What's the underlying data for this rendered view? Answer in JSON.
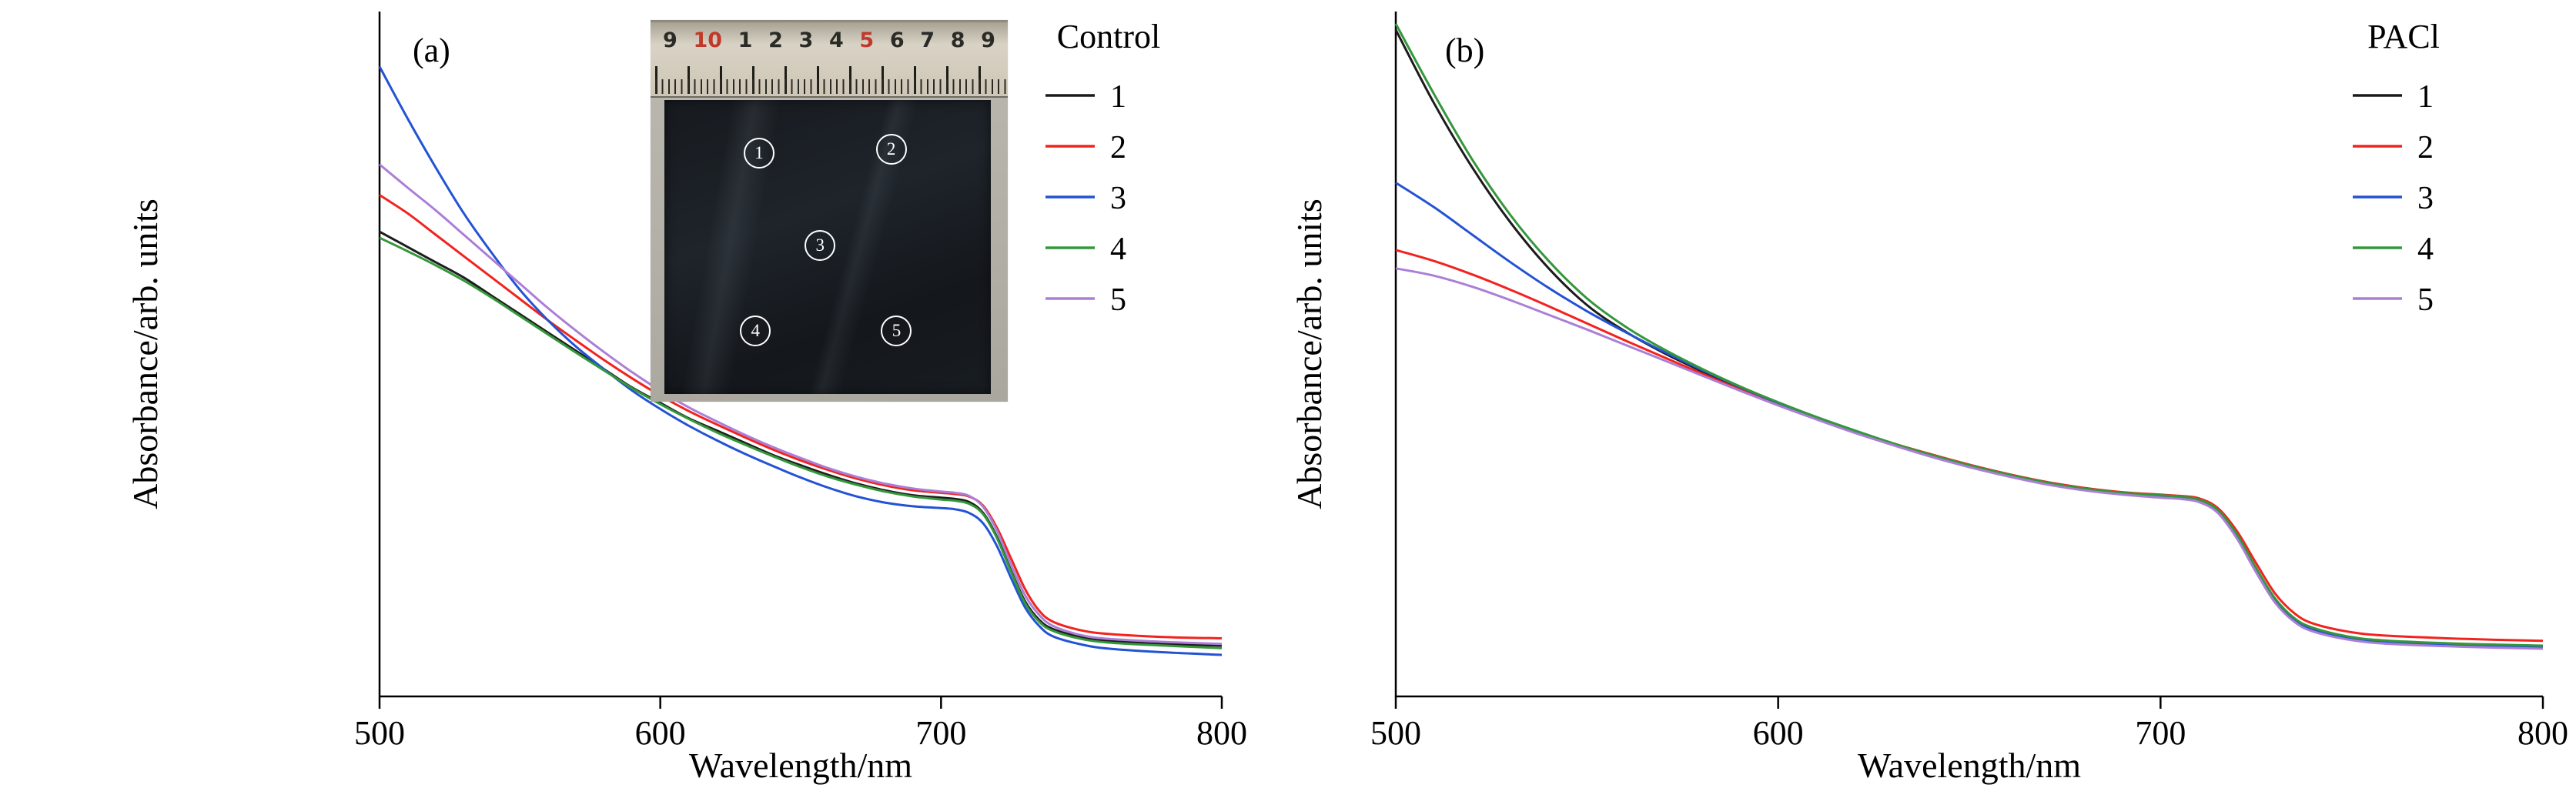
{
  "page": {
    "background": "#ffffff"
  },
  "chart_data": [
    {
      "type": "line",
      "panel_label": "(a)",
      "legend_title": "Control",
      "xlabel": "Wavelength/nm",
      "ylabel": "Absorbance/arb. units",
      "xlim": [
        500,
        800
      ],
      "ylim": [
        0,
        1.12
      ],
      "x_ticks": [
        500,
        600,
        700,
        800
      ],
      "grid": false,
      "legend_position": "top-right",
      "x": [
        500,
        510,
        520,
        530,
        540,
        550,
        560,
        570,
        580,
        590,
        600,
        610,
        620,
        630,
        640,
        650,
        660,
        670,
        680,
        690,
        700,
        705,
        710,
        715,
        720,
        725,
        730,
        735,
        740,
        750,
        760,
        780,
        800
      ],
      "series": [
        {
          "name": "1",
          "color": "#1c1c1c",
          "values": [
            0.76,
            0.735,
            0.71,
            0.685,
            0.655,
            0.625,
            0.595,
            0.565,
            0.535,
            0.505,
            0.48,
            0.455,
            0.435,
            0.415,
            0.395,
            0.378,
            0.362,
            0.348,
            0.337,
            0.329,
            0.325,
            0.323,
            0.318,
            0.3,
            0.26,
            0.205,
            0.155,
            0.125,
            0.11,
            0.097,
            0.091,
            0.086,
            0.083
          ]
        },
        {
          "name": "2",
          "color": "#f2231e",
          "values": [
            0.82,
            0.79,
            0.755,
            0.72,
            0.685,
            0.65,
            0.615,
            0.582,
            0.55,
            0.52,
            0.492,
            0.467,
            0.445,
            0.424,
            0.404,
            0.386,
            0.37,
            0.356,
            0.345,
            0.337,
            0.333,
            0.331,
            0.327,
            0.312,
            0.275,
            0.225,
            0.175,
            0.14,
            0.122,
            0.108,
            0.102,
            0.097,
            0.095
          ]
        },
        {
          "name": "3",
          "color": "#2353d4",
          "values": [
            1.03,
            0.945,
            0.865,
            0.79,
            0.725,
            0.665,
            0.615,
            0.572,
            0.535,
            0.5,
            0.47,
            0.443,
            0.419,
            0.397,
            0.377,
            0.358,
            0.341,
            0.327,
            0.317,
            0.311,
            0.308,
            0.306,
            0.3,
            0.283,
            0.245,
            0.193,
            0.145,
            0.115,
            0.098,
            0.085,
            0.078,
            0.072,
            0.068
          ]
        },
        {
          "name": "4",
          "color": "#35973b",
          "values": [
            0.75,
            0.728,
            0.705,
            0.68,
            0.652,
            0.622,
            0.592,
            0.562,
            0.533,
            0.504,
            0.478,
            0.454,
            0.432,
            0.412,
            0.393,
            0.375,
            0.359,
            0.346,
            0.335,
            0.327,
            0.322,
            0.32,
            0.315,
            0.298,
            0.258,
            0.203,
            0.152,
            0.122,
            0.107,
            0.094,
            0.088,
            0.083,
            0.079
          ]
        },
        {
          "name": "5",
          "color": "#ab7fd6",
          "values": [
            0.87,
            0.832,
            0.795,
            0.755,
            0.715,
            0.675,
            0.635,
            0.598,
            0.563,
            0.53,
            0.5,
            0.473,
            0.45,
            0.428,
            0.408,
            0.39,
            0.373,
            0.359,
            0.348,
            0.34,
            0.335,
            0.333,
            0.328,
            0.31,
            0.27,
            0.215,
            0.165,
            0.133,
            0.115,
            0.1,
            0.094,
            0.089,
            0.086
          ]
        }
      ]
    },
    {
      "type": "line",
      "panel_label": "(b)",
      "legend_title": "PACl",
      "xlabel": "Wavelength/nm",
      "ylabel": "Absorbance/arb. units",
      "xlim": [
        500,
        800
      ],
      "ylim": [
        0,
        1.12
      ],
      "x_ticks": [
        500,
        600,
        700,
        800
      ],
      "grid": false,
      "legend_position": "top-right",
      "x": [
        500,
        510,
        520,
        530,
        540,
        550,
        560,
        570,
        580,
        590,
        600,
        610,
        620,
        630,
        640,
        650,
        660,
        670,
        680,
        690,
        700,
        705,
        710,
        715,
        720,
        725,
        730,
        735,
        740,
        750,
        760,
        780,
        800
      ],
      "series": [
        {
          "name": "1",
          "color": "#1c1c1c",
          "values": [
            1.09,
            0.97,
            0.865,
            0.775,
            0.7,
            0.64,
            0.597,
            0.562,
            0.532,
            0.504,
            0.479,
            0.455,
            0.433,
            0.413,
            0.394,
            0.377,
            0.362,
            0.349,
            0.339,
            0.332,
            0.328,
            0.326,
            0.321,
            0.303,
            0.262,
            0.207,
            0.157,
            0.126,
            0.11,
            0.096,
            0.09,
            0.085,
            0.082
          ]
        },
        {
          "name": "2",
          "color": "#f2231e",
          "values": [
            0.73,
            0.712,
            0.69,
            0.665,
            0.638,
            0.61,
            0.582,
            0.555,
            0.528,
            0.502,
            0.478,
            0.455,
            0.434,
            0.414,
            0.396,
            0.379,
            0.364,
            0.351,
            0.341,
            0.334,
            0.33,
            0.328,
            0.324,
            0.308,
            0.27,
            0.218,
            0.168,
            0.136,
            0.119,
            0.105,
            0.099,
            0.094,
            0.091
          ]
        },
        {
          "name": "3",
          "color": "#2353d4",
          "values": [
            0.84,
            0.8,
            0.755,
            0.71,
            0.668,
            0.63,
            0.596,
            0.564,
            0.534,
            0.506,
            0.48,
            0.456,
            0.434,
            0.413,
            0.394,
            0.377,
            0.361,
            0.348,
            0.338,
            0.331,
            0.327,
            0.325,
            0.32,
            0.302,
            0.261,
            0.206,
            0.156,
            0.125,
            0.109,
            0.095,
            0.089,
            0.084,
            0.081
          ]
        },
        {
          "name": "4",
          "color": "#35973b",
          "values": [
            1.1,
            0.985,
            0.878,
            0.787,
            0.712,
            0.651,
            0.605,
            0.568,
            0.536,
            0.507,
            0.481,
            0.457,
            0.435,
            0.414,
            0.395,
            0.378,
            0.363,
            0.35,
            0.34,
            0.333,
            0.329,
            0.327,
            0.322,
            0.305,
            0.265,
            0.21,
            0.16,
            0.128,
            0.112,
            0.097,
            0.091,
            0.086,
            0.083
          ]
        },
        {
          "name": "5",
          "color": "#ab7fd6",
          "values": [
            0.7,
            0.688,
            0.67,
            0.648,
            0.624,
            0.6,
            0.575,
            0.55,
            0.525,
            0.5,
            0.476,
            0.453,
            0.431,
            0.411,
            0.392,
            0.375,
            0.36,
            0.347,
            0.337,
            0.33,
            0.325,
            0.323,
            0.318,
            0.3,
            0.258,
            0.203,
            0.153,
            0.122,
            0.106,
            0.092,
            0.086,
            0.081,
            0.078
          ]
        }
      ]
    }
  ],
  "inset": {
    "ruler_marks": [
      {
        "label": "9",
        "color": "#2a2a26"
      },
      {
        "label": "10",
        "color": "#c0392b"
      },
      {
        "label": "1",
        "color": "#2a2a26"
      },
      {
        "label": "2",
        "color": "#2a2a26"
      },
      {
        "label": "3",
        "color": "#2a2a26"
      },
      {
        "label": "4",
        "color": "#2a2a26"
      },
      {
        "label": "5",
        "color": "#c0392b"
      },
      {
        "label": "6",
        "color": "#2a2a26"
      },
      {
        "label": "7",
        "color": "#2a2a26"
      },
      {
        "label": "8",
        "color": "#2a2a26"
      },
      {
        "label": "9",
        "color": "#2a2a26"
      }
    ],
    "film_markers": [
      {
        "label": "1",
        "x": 0.29,
        "y": 0.18
      },
      {
        "label": "2",
        "x": 0.695,
        "y": 0.168
      },
      {
        "label": "3",
        "x": 0.477,
        "y": 0.494
      },
      {
        "label": "4",
        "x": 0.279,
        "y": 0.786
      },
      {
        "label": "5",
        "x": 0.711,
        "y": 0.786
      }
    ]
  }
}
